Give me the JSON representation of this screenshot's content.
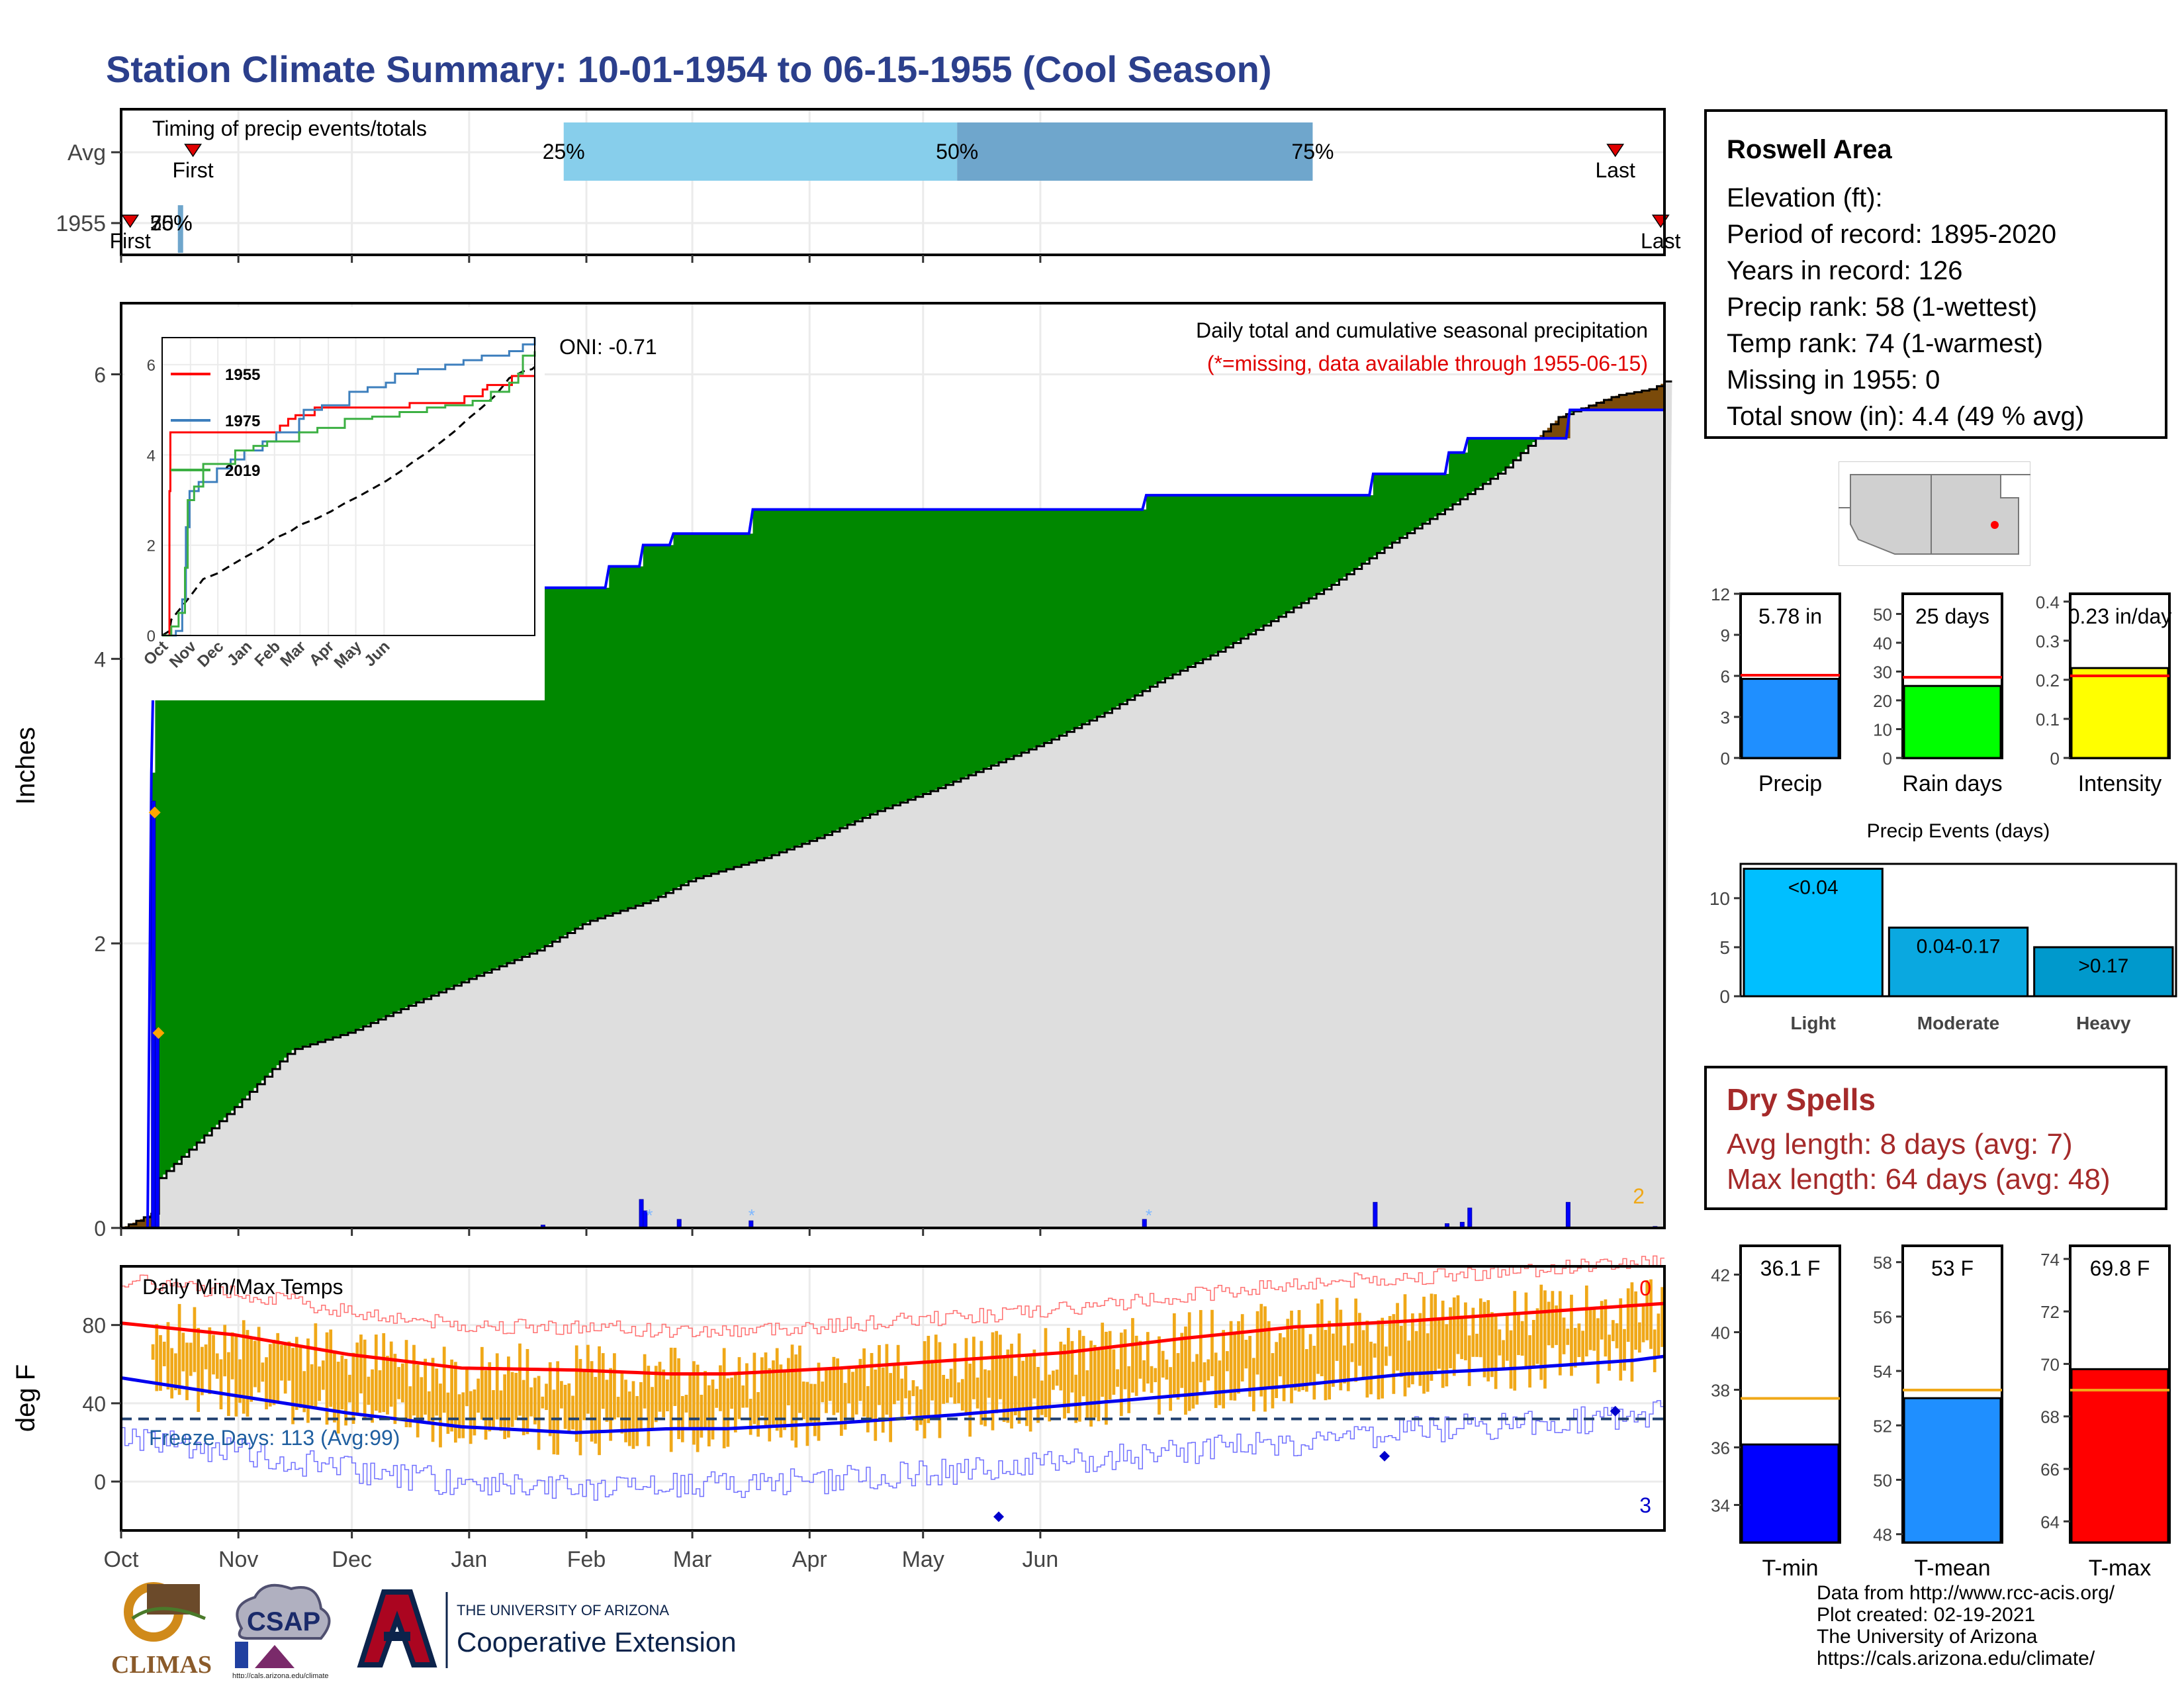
{
  "title": "Station Climate Summary: 10-01-1954 to 06-15-1955 (Cool Season)",
  "colors": {
    "title": "#2b3f8c",
    "green": "#008800",
    "gray": "#dedede",
    "blue": "#0000ff",
    "orange": "#f0a818",
    "red": "#ff0000",
    "q_light": "#87ceeb",
    "q_dark": "#6fa6cc"
  },
  "info": {
    "station": "Roswell Area",
    "lines": [
      "Elevation (ft):",
      "Period of record: 1895-2020",
      "Years in record: 126",
      "Precip rank: 58 (1-wettest)",
      "Temp rank: 74 (1-warmest)",
      "Missing in 1955: 0",
      "Total snow (in): 4.4 (49 % avg)"
    ]
  },
  "dry_spells": {
    "title": "Dry Spells",
    "avg": "Avg length: 8 days (avg: 7)",
    "max": "Max length: 64 days (avg: 48)"
  },
  "footer": [
    "Data from http://www.rcc-acis.org/",
    "Plot created: 02-19-2021",
    "The University of Arizona",
    "https://cals.arizona.edu/climate/"
  ],
  "logos": {
    "climas": "CLIMAS",
    "csap": "CSAP",
    "csap_url": "http://cals.arizona.edu/climate",
    "ua_small": "THE UNIVERSITY OF ARIZONA",
    "ua_big": "Cooperative Extension"
  },
  "month_labels": [
    "Oct",
    "Nov",
    "Dec",
    "Jan",
    "Feb",
    "Mar",
    "Apr",
    "May",
    "Jun"
  ],
  "chart_data": [
    {
      "id": "timing",
      "type": "bar",
      "title": "Timing of precip events/totals",
      "rows": [
        "Avg",
        "1955"
      ],
      "avg": {
        "first": "First",
        "last": "Last",
        "pct_labels": [
          "25%",
          "50%",
          "75%"
        ],
        "q25_day": 117,
        "q50_day": 221,
        "q75_day": 315,
        "first_day": 19,
        "last_day": 395
      },
      "y1955": {
        "first": "First",
        "last": "Last",
        "pct_labels": [
          "25%",
          "50%",
          "75%"
        ],
        "first_day": 1,
        "last_day": 407,
        "q_days": [
          8,
          8,
          9
        ]
      }
    },
    {
      "id": "precip",
      "type": "area",
      "ylabel": "Inches",
      "ylim": [
        0,
        6.5
      ],
      "yticks": [
        0,
        2,
        4,
        6
      ],
      "text": "Daily total and cumulative seasonal precipitation",
      "missing_note": "(*=missing, data available through 1955-06-15)",
      "oni": "ONI: -0.71",
      "corner_count": "2",
      "normal_cumulative": {
        "days": [
          0,
          8,
          10,
          30,
          45,
          61,
          75,
          92,
          110,
          123,
          140,
          151,
          170,
          185,
          200,
          215,
          230,
          245,
          260,
          275,
          290,
          305,
          320,
          335,
          350,
          365,
          380,
          395,
          405,
          408
        ],
        "values": [
          0,
          0.1,
          0.35,
          0.85,
          1.25,
          1.38,
          1.55,
          1.75,
          1.95,
          2.15,
          2.3,
          2.45,
          2.6,
          2.75,
          2.93,
          3.08,
          3.25,
          3.42,
          3.62,
          3.85,
          4.05,
          4.28,
          4.52,
          4.8,
          5.05,
          5.32,
          5.7,
          5.85,
          5.9,
          5.95
        ]
      },
      "cumulative_1955": {
        "days": [
          0,
          7,
          8,
          9,
          10,
          128,
          129,
          137,
          138,
          145,
          146,
          166,
          167,
          270,
          271,
          330,
          331,
          350,
          351,
          355,
          356,
          382,
          383,
          408
        ],
        "values": [
          0,
          0,
          3.2,
          4.5,
          4.5,
          4.5,
          4.65,
          4.65,
          4.8,
          4.8,
          4.88,
          4.88,
          5.05,
          5.05,
          5.15,
          5.15,
          5.3,
          5.3,
          5.45,
          5.45,
          5.55,
          5.55,
          5.75,
          5.75
        ]
      },
      "daily_bars": [
        {
          "day": 8,
          "value": 3.0
        },
        {
          "day": 9,
          "value": 1.4
        },
        {
          "day": 111,
          "value": 0.02
        },
        {
          "day": 137,
          "value": 0.2
        },
        {
          "day": 138,
          "value": 0.12
        },
        {
          "day": 147,
          "value": 0.06
        },
        {
          "day": 166,
          "value": 0.05
        },
        {
          "day": 270,
          "value": 0.06
        },
        {
          "day": 331,
          "value": 0.18
        },
        {
          "day": 350,
          "value": 0.03
        },
        {
          "day": 354,
          "value": 0.04
        },
        {
          "day": 356,
          "value": 0.14
        },
        {
          "day": 382,
          "value": 0.18
        },
        {
          "day": 405,
          "value": 0.01
        }
      ],
      "snow_days": [
        139,
        166,
        271
      ],
      "orange_markers": [
        {
          "day": 8,
          "value": 2.92
        },
        {
          "day": 9,
          "value": 1.37
        }
      ],
      "inset": {
        "type": "line",
        "yticks": [
          0,
          2,
          4,
          6
        ],
        "ylim": [
          0,
          6.6
        ],
        "xlabels": [
          "Oct",
          "Nov",
          "Dec",
          "Jan",
          "Feb",
          "Mar",
          "Apr",
          "May",
          "Jun"
        ],
        "series": [
          {
            "name": "1955",
            "color": "#ff0000",
            "days": [
              0,
              7,
              8,
              9,
              10,
              128,
              129,
              137,
              138,
              145,
              146,
              166,
              167,
              270,
              271,
              330,
              331,
              350,
              351,
              355,
              356,
              382,
              383,
              408
            ],
            "values": [
              0,
              0,
              3.2,
              4.5,
              4.5,
              4.5,
              4.65,
              4.65,
              4.8,
              4.8,
              4.88,
              4.88,
              5.05,
              5.05,
              5.15,
              5.15,
              5.3,
              5.3,
              5.45,
              5.45,
              5.55,
              5.55,
              5.75,
              5.75
            ]
          },
          {
            "name": "1975",
            "color": "#3d7fbd",
            "days": [
              0,
              15,
              22,
              26,
              30,
              40,
              60,
              75,
              90,
              110,
              125,
              150,
              155,
              175,
              205,
              225,
              245,
              255,
              280,
              310,
              330,
              350,
              380,
              395,
              408
            ],
            "values": [
              0,
              0.1,
              0.8,
              2.4,
              3.2,
              3.4,
              3.7,
              3.9,
              4.1,
              4.3,
              4.5,
              4.8,
              5.0,
              5.1,
              5.4,
              5.5,
              5.6,
              5.8,
              5.9,
              6.0,
              6.1,
              6.2,
              6.3,
              6.45,
              6.6
            ]
          },
          {
            "name": "2019",
            "color": "#3cb043",
            "days": [
              0,
              10,
              18,
              25,
              28,
              35,
              45,
              60,
              80,
              100,
              115,
              150,
              170,
              200,
              230,
              260,
              290,
              310,
              340,
              360,
              380,
              390,
              395,
              408
            ],
            "values": [
              0,
              0.2,
              0.5,
              1.5,
              3.0,
              3.3,
              3.8,
              3.8,
              4.1,
              4.2,
              4.3,
              4.5,
              4.6,
              4.8,
              4.85,
              4.95,
              5.05,
              5.1,
              5.2,
              5.4,
              5.6,
              5.8,
              6.2,
              6.3
            ]
          }
        ],
        "normal_dashed": true
      }
    },
    {
      "id": "temps",
      "type": "line",
      "title": "Daily Min/Max Temps",
      "ylabel": "deg F",
      "ylim": [
        -25,
        110
      ],
      "yticks": [
        0,
        40,
        80
      ],
      "freeze_label": "Freeze Days: 113 (Avg:99)",
      "freeze_line": 32,
      "count_top": "0",
      "count_bottom": "3",
      "avg_max": {
        "days": [
          0,
          30,
          60,
          90,
          120,
          145,
          160,
          190,
          220,
          250,
          280,
          310,
          340,
          370,
          400,
          408
        ],
        "values": [
          81,
          75,
          65,
          58,
          57,
          55,
          55,
          58,
          62,
          66,
          73,
          79,
          82,
          86,
          90,
          91
        ]
      },
      "avg_min": {
        "days": [
          0,
          30,
          60,
          90,
          120,
          145,
          160,
          190,
          220,
          250,
          280,
          310,
          340,
          370,
          400,
          408
        ],
        "values": [
          53,
          44,
          35,
          28,
          25,
          27,
          27,
          30,
          34,
          39,
          44,
          49,
          55,
          58,
          62,
          64
        ]
      }
    },
    {
      "id": "summary_bars",
      "type": "bar",
      "panels": [
        {
          "label": "Precip",
          "value": 5.78,
          "text": "5.78 in",
          "avg": 6.05,
          "yticks": [
            0,
            3,
            6,
            9,
            12
          ],
          "ylim": [
            0,
            12
          ],
          "color": "#1f8fff"
        },
        {
          "label": "Rain days",
          "value": 25,
          "text": "25 days",
          "avg": 28,
          "yticks": [
            0,
            10,
            20,
            30,
            40,
            50
          ],
          "ylim": [
            0,
            57
          ],
          "color": "#00ff00"
        },
        {
          "label": "Intensity",
          "value": 0.23,
          "text": "0.23 in/day",
          "avg": 0.21,
          "yticks": [
            0.0,
            0.1,
            0.2,
            0.3,
            0.4
          ],
          "ylim": [
            0,
            0.42
          ],
          "color": "#ffff00"
        }
      ]
    },
    {
      "id": "precip_events",
      "type": "bar",
      "title": "Precip Events (days)",
      "categories": [
        "Light",
        "Moderate",
        "Heavy"
      ],
      "labels": [
        "<0.04",
        "0.04-0.17",
        ">0.17"
      ],
      "values": [
        13,
        7,
        5
      ],
      "yticks": [
        0,
        5,
        10
      ],
      "ylim": [
        0,
        13.5
      ],
      "colors": [
        "#00bfff",
        "#0aa8e0",
        "#0099cc"
      ]
    },
    {
      "id": "temp_summary",
      "type": "bar",
      "panels": [
        {
          "label": "T-min",
          "value": 36.1,
          "text": "36.1 F",
          "avg": 37.7,
          "yticks": [
            34,
            36,
            38,
            40,
            42
          ],
          "ylim": [
            32.7,
            43
          ],
          "color": "#0000ff"
        },
        {
          "label": "T-mean",
          "value": 53,
          "text": "53 F",
          "avg": 53.3,
          "yticks": [
            48,
            50,
            52,
            54,
            56,
            58
          ],
          "ylim": [
            47.7,
            58.6
          ],
          "color": "#1f8fff"
        },
        {
          "label": "T-max",
          "value": 69.8,
          "text": "69.8 F",
          "avg": 69.0,
          "yticks": [
            64,
            66,
            68,
            70,
            72,
            74
          ],
          "ylim": [
            63.2,
            74.5
          ],
          "color": "#ff0000"
        }
      ]
    }
  ]
}
